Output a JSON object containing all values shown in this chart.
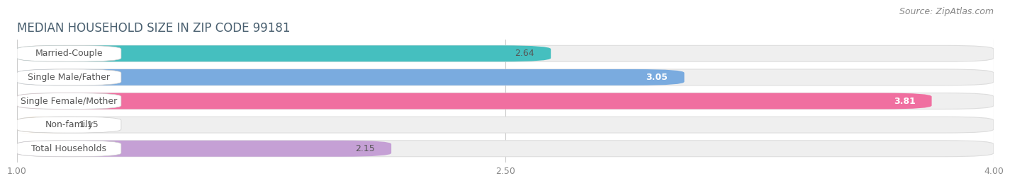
{
  "title": "MEDIAN HOUSEHOLD SIZE IN ZIP CODE 99181",
  "source": "Source: ZipAtlas.com",
  "categories": [
    "Married-Couple",
    "Single Male/Father",
    "Single Female/Mother",
    "Non-family",
    "Total Households"
  ],
  "values": [
    2.64,
    3.05,
    3.81,
    1.15,
    2.15
  ],
  "bar_colors": [
    "#45bfbf",
    "#7aabdf",
    "#f06fa0",
    "#f5c98a",
    "#c5a0d5"
  ],
  "value_label_colors": [
    "#555555",
    "#ffffff",
    "#ffffff",
    "#555555",
    "#555555"
  ],
  "xlim_min": 1.0,
  "xlim_max": 4.0,
  "xticks": [
    1.0,
    2.5,
    4.0
  ],
  "xtick_labels": [
    "1.00",
    "2.50",
    "4.00"
  ],
  "fig_bg_color": "#ffffff",
  "plot_bg_color": "#f7f7f7",
  "bar_bg_color": "#efefef",
  "bar_height": 0.68,
  "title_fontsize": 12,
  "label_fontsize": 9,
  "value_fontsize": 9,
  "source_fontsize": 9,
  "title_color": "#4a6070",
  "label_color": "#555555",
  "source_color": "#888888",
  "tick_color": "#888888"
}
